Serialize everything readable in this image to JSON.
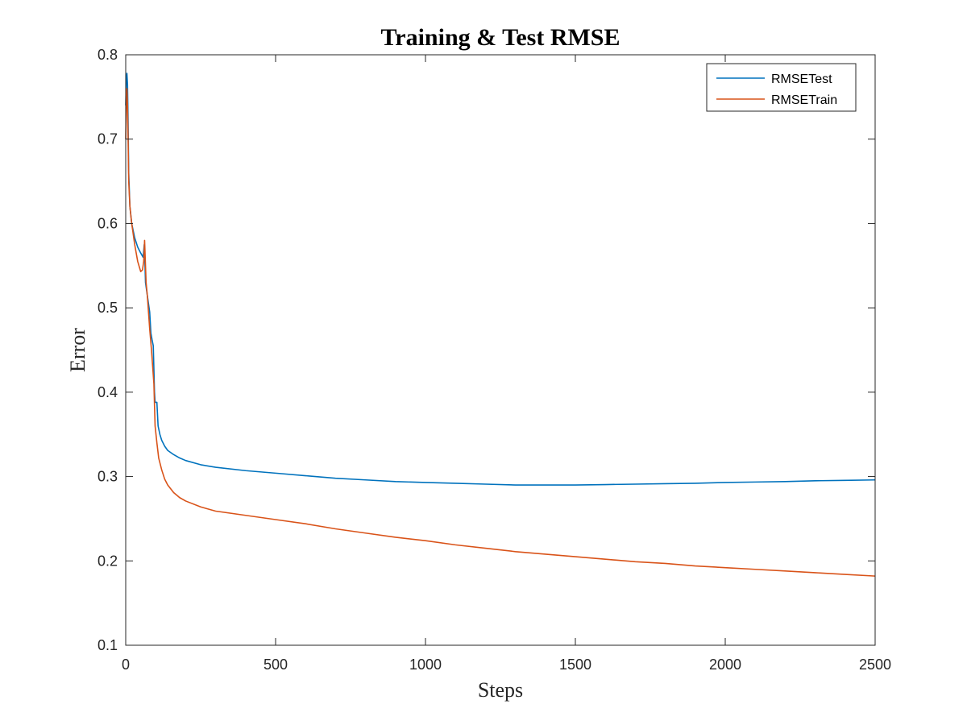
{
  "chart_data": {
    "type": "line",
    "title": "Training & Test RMSE",
    "xlabel": "Steps",
    "ylabel": "Error",
    "xlim": [
      0,
      2500
    ],
    "ylim": [
      0.1,
      0.8
    ],
    "xticks": [
      0,
      500,
      1000,
      1500,
      2000,
      2500
    ],
    "yticks": [
      0.1,
      0.2,
      0.3,
      0.4,
      0.5,
      0.6,
      0.7,
      0.8
    ],
    "grid": false,
    "legend_position": "top-right",
    "series": [
      {
        "name": "RMSETest",
        "color": "#0072BD",
        "points": [
          [
            0,
            0.74
          ],
          [
            2,
            0.77
          ],
          [
            4,
            0.778
          ],
          [
            6,
            0.765
          ],
          [
            8,
            0.72
          ],
          [
            10,
            0.66
          ],
          [
            14,
            0.62
          ],
          [
            20,
            0.6
          ],
          [
            30,
            0.583
          ],
          [
            40,
            0.572
          ],
          [
            50,
            0.565
          ],
          [
            58,
            0.56
          ],
          [
            62,
            0.575
          ],
          [
            64,
            0.555
          ],
          [
            66,
            0.53
          ],
          [
            70,
            0.52
          ],
          [
            76,
            0.505
          ],
          [
            80,
            0.495
          ],
          [
            84,
            0.47
          ],
          [
            88,
            0.462
          ],
          [
            92,
            0.455
          ],
          [
            96,
            0.4
          ],
          [
            98,
            0.388
          ],
          [
            104,
            0.388
          ],
          [
            108,
            0.36
          ],
          [
            114,
            0.35
          ],
          [
            120,
            0.343
          ],
          [
            130,
            0.336
          ],
          [
            140,
            0.331
          ],
          [
            160,
            0.326
          ],
          [
            180,
            0.322
          ],
          [
            200,
            0.319
          ],
          [
            250,
            0.314
          ],
          [
            300,
            0.311
          ],
          [
            400,
            0.307
          ],
          [
            500,
            0.304
          ],
          [
            600,
            0.301
          ],
          [
            700,
            0.298
          ],
          [
            800,
            0.296
          ],
          [
            900,
            0.294
          ],
          [
            1000,
            0.293
          ],
          [
            1100,
            0.292
          ],
          [
            1200,
            0.291
          ],
          [
            1300,
            0.29
          ],
          [
            1400,
            0.29
          ],
          [
            1500,
            0.29
          ],
          [
            1600,
            0.2905
          ],
          [
            1700,
            0.291
          ],
          [
            1800,
            0.2915
          ],
          [
            1900,
            0.292
          ],
          [
            2000,
            0.293
          ],
          [
            2100,
            0.2935
          ],
          [
            2200,
            0.294
          ],
          [
            2300,
            0.295
          ],
          [
            2400,
            0.2955
          ],
          [
            2500,
            0.296
          ]
        ]
      },
      {
        "name": "RMSETrain",
        "color": "#D95319",
        "points": [
          [
            0,
            0.7
          ],
          [
            2,
            0.74
          ],
          [
            4,
            0.76
          ],
          [
            6,
            0.74
          ],
          [
            8,
            0.7
          ],
          [
            10,
            0.65
          ],
          [
            14,
            0.62
          ],
          [
            20,
            0.6
          ],
          [
            30,
            0.575
          ],
          [
            40,
            0.555
          ],
          [
            50,
            0.543
          ],
          [
            56,
            0.545
          ],
          [
            60,
            0.555
          ],
          [
            63,
            0.58
          ],
          [
            65,
            0.56
          ],
          [
            68,
            0.53
          ],
          [
            72,
            0.515
          ],
          [
            76,
            0.495
          ],
          [
            80,
            0.475
          ],
          [
            86,
            0.45
          ],
          [
            90,
            0.43
          ],
          [
            94,
            0.41
          ],
          [
            98,
            0.36
          ],
          [
            104,
            0.34
          ],
          [
            110,
            0.322
          ],
          [
            120,
            0.308
          ],
          [
            130,
            0.297
          ],
          [
            140,
            0.29
          ],
          [
            160,
            0.281
          ],
          [
            180,
            0.275
          ],
          [
            200,
            0.271
          ],
          [
            250,
            0.264
          ],
          [
            300,
            0.259
          ],
          [
            400,
            0.254
          ],
          [
            500,
            0.249
          ],
          [
            600,
            0.244
          ],
          [
            700,
            0.238
          ],
          [
            800,
            0.233
          ],
          [
            900,
            0.228
          ],
          [
            1000,
            0.224
          ],
          [
            1100,
            0.219
          ],
          [
            1200,
            0.215
          ],
          [
            1300,
            0.211
          ],
          [
            1400,
            0.208
          ],
          [
            1500,
            0.205
          ],
          [
            1600,
            0.202
          ],
          [
            1700,
            0.199
          ],
          [
            1800,
            0.197
          ],
          [
            1900,
            0.194
          ],
          [
            2000,
            0.192
          ],
          [
            2100,
            0.19
          ],
          [
            2200,
            0.188
          ],
          [
            2300,
            0.186
          ],
          [
            2400,
            0.184
          ],
          [
            2500,
            0.182
          ]
        ]
      }
    ]
  }
}
